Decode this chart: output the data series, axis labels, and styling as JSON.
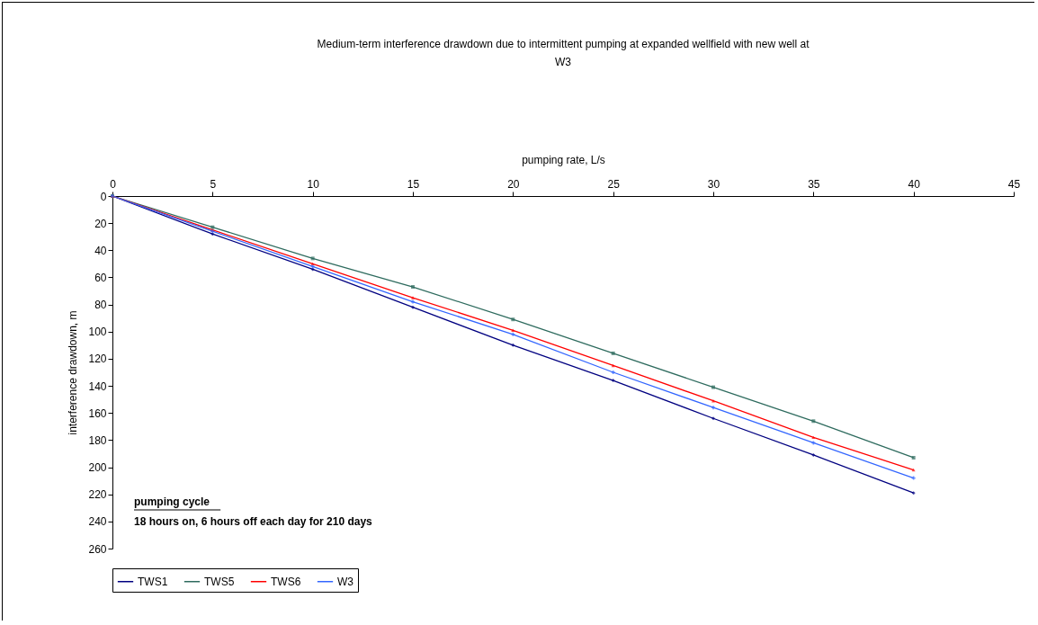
{
  "chart_data": {
    "type": "line",
    "title": [
      "Medium-term interference drawdown due to intermittent pumping at expanded wellfield with new well at",
      "W3"
    ],
    "xlabel": "pumping rate, L/s",
    "ylabel": "interference drawdown, m",
    "x": [
      0,
      5,
      10,
      15,
      20,
      25,
      30,
      35,
      40
    ],
    "xlim": [
      0,
      45
    ],
    "xticks": [
      0,
      5,
      10,
      15,
      20,
      25,
      30,
      35,
      40,
      45
    ],
    "ylim": [
      260,
      0
    ],
    "yticks": [
      0,
      20,
      40,
      60,
      80,
      100,
      120,
      140,
      160,
      180,
      200,
      220,
      240,
      260
    ],
    "grid": false,
    "legend": "bottom",
    "annotations": [
      "pumping cycle",
      "18 hours on, 6 hours off each day for 210 days"
    ],
    "series": [
      {
        "name": "TWS1",
        "color": "#000080",
        "marker": "diamond",
        "values": [
          0,
          28,
          54,
          82,
          110,
          136,
          164,
          191,
          219
        ]
      },
      {
        "name": "TWS5",
        "color": "#2e6b5e",
        "marker": "square",
        "values": [
          0,
          23,
          46,
          67,
          91,
          116,
          141,
          166,
          193
        ]
      },
      {
        "name": "TWS6",
        "color": "#ff0000",
        "marker": "triangle",
        "values": [
          0,
          25,
          50,
          75,
          99,
          125,
          151,
          178,
          202
        ]
      },
      {
        "name": "W3",
        "color": "#3366ff",
        "marker": "cross",
        "values": [
          0,
          26,
          52,
          78,
          102,
          130,
          156,
          182,
          208
        ]
      }
    ]
  }
}
